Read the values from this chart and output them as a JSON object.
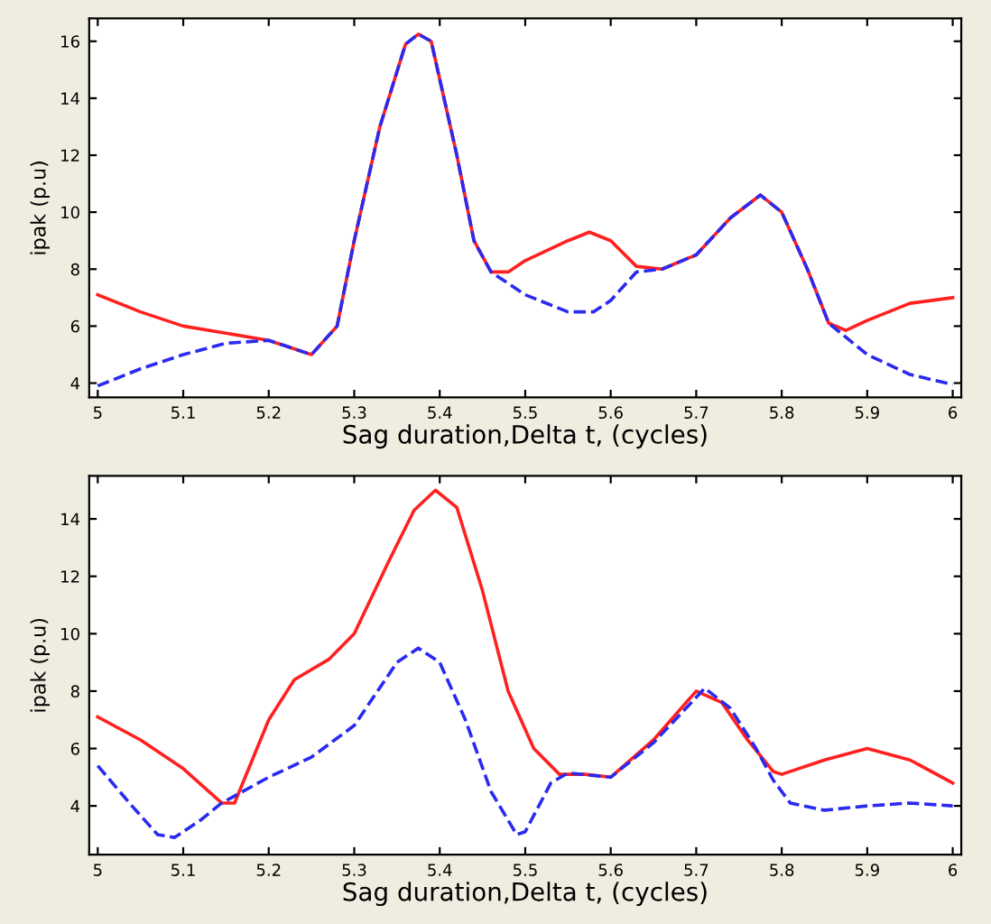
{
  "chart_data": [
    {
      "type": "line",
      "xlabel": "Sag duration,Delta t, (cycles)",
      "ylabel": "ipak (p.u)",
      "xlim": [
        4.99,
        6.01
      ],
      "ylim": [
        3.5,
        16.8
      ],
      "xticks": [
        5,
        5.1,
        5.2,
        5.3,
        5.4,
        5.5,
        5.6,
        5.7,
        5.8,
        5.9,
        6
      ],
      "yticks": [
        4,
        6,
        8,
        10,
        12,
        14,
        16
      ],
      "grid": false,
      "marker": "none",
      "series": [
        {
          "color": "#ff2020",
          "line_style": "solid",
          "x": [
            5.0,
            5.05,
            5.1,
            5.15,
            5.2,
            5.25,
            5.28,
            5.3,
            5.33,
            5.36,
            5.375,
            5.39,
            5.42,
            5.44,
            5.46,
            5.48,
            5.5,
            5.55,
            5.575,
            5.6,
            5.63,
            5.66,
            5.7,
            5.74,
            5.775,
            5.8,
            5.83,
            5.855,
            5.875,
            5.9,
            5.95,
            6.0
          ],
          "values": [
            7.1,
            6.5,
            6.0,
            5.75,
            5.5,
            5.0,
            6.0,
            9.0,
            13.0,
            15.9,
            16.25,
            16.0,
            12.0,
            9.0,
            7.9,
            7.9,
            8.3,
            9.0,
            9.3,
            9.0,
            8.1,
            8.0,
            8.5,
            9.8,
            10.6,
            10.0,
            8.0,
            6.1,
            5.85,
            6.2,
            6.8,
            7.0
          ]
        },
        {
          "color": "#2a2af0",
          "line_style": "dashed",
          "x": [
            5.0,
            5.05,
            5.1,
            5.15,
            5.2,
            5.25,
            5.28,
            5.3,
            5.33,
            5.36,
            5.375,
            5.39,
            5.42,
            5.44,
            5.46,
            5.5,
            5.55,
            5.58,
            5.6,
            5.63,
            5.66,
            5.7,
            5.74,
            5.775,
            5.8,
            5.83,
            5.855,
            5.9,
            5.95,
            6.0
          ],
          "values": [
            3.9,
            4.5,
            5.0,
            5.4,
            5.5,
            5.0,
            6.0,
            9.0,
            13.0,
            15.9,
            16.25,
            16.0,
            12.0,
            9.0,
            7.9,
            7.1,
            6.5,
            6.5,
            6.9,
            7.9,
            8.0,
            8.5,
            9.8,
            10.6,
            10.0,
            8.0,
            6.1,
            5.0,
            4.3,
            3.95
          ]
        }
      ]
    },
    {
      "type": "line",
      "xlabel": "Sag duration,Delta t, (cycles)",
      "ylabel": "ipak (p.u)",
      "xlim": [
        4.99,
        6.01
      ],
      "ylim": [
        2.3,
        15.5
      ],
      "xticks": [
        5,
        5.1,
        5.2,
        5.3,
        5.4,
        5.5,
        5.6,
        5.7,
        5.8,
        5.9,
        6
      ],
      "yticks": [
        4,
        6,
        8,
        10,
        12,
        14
      ],
      "grid": false,
      "marker": "none",
      "series": [
        {
          "color": "#ff2020",
          "line_style": "solid",
          "x": [
            5.0,
            5.05,
            5.1,
            5.145,
            5.16,
            5.2,
            5.23,
            5.27,
            5.3,
            5.34,
            5.37,
            5.395,
            5.42,
            5.45,
            5.48,
            5.51,
            5.54,
            5.57,
            5.6,
            5.65,
            5.7,
            5.73,
            5.76,
            5.79,
            5.8,
            5.85,
            5.9,
            5.95,
            6.0
          ],
          "values": [
            7.1,
            6.3,
            5.3,
            4.1,
            4.1,
            7.0,
            8.4,
            9.1,
            10.0,
            12.5,
            14.3,
            15.0,
            14.4,
            11.5,
            8.0,
            6.0,
            5.1,
            5.1,
            5.0,
            6.3,
            8.0,
            7.6,
            6.3,
            5.2,
            5.1,
            5.6,
            6.0,
            5.6,
            4.8
          ]
        },
        {
          "color": "#2a2af0",
          "line_style": "dashed",
          "x": [
            5.0,
            5.04,
            5.07,
            5.09,
            5.12,
            5.145,
            5.2,
            5.25,
            5.3,
            5.35,
            5.375,
            5.4,
            5.43,
            5.46,
            5.49,
            5.5,
            5.53,
            5.55,
            5.6,
            5.65,
            5.71,
            5.74,
            5.77,
            5.79,
            5.81,
            5.85,
            5.9,
            5.95,
            6.0
          ],
          "values": [
            5.4,
            4.0,
            3.0,
            2.9,
            3.5,
            4.1,
            5.0,
            5.7,
            6.8,
            9.0,
            9.5,
            9.0,
            7.0,
            4.5,
            3.0,
            3.1,
            4.8,
            5.15,
            5.0,
            6.2,
            8.1,
            7.4,
            6.0,
            4.9,
            4.1,
            3.85,
            4.0,
            4.1,
            4.0
          ]
        }
      ]
    }
  ]
}
